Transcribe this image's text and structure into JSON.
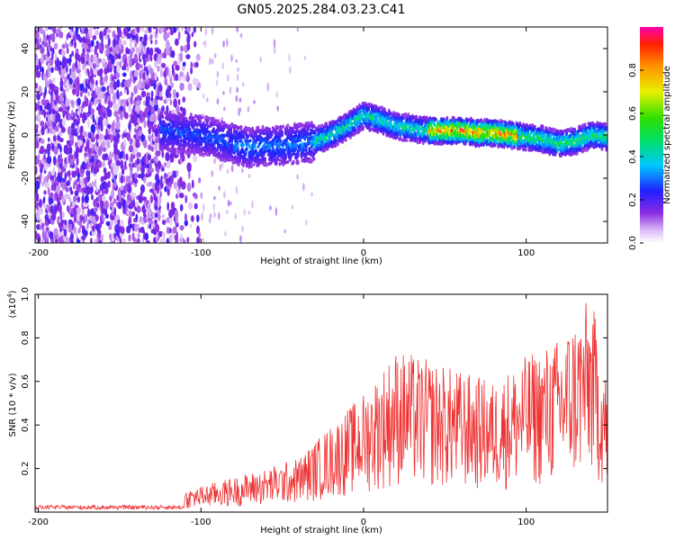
{
  "title": "GN05.2025.284.03.23.C41",
  "chart_data": [
    {
      "type": "heatmap",
      "title": "GN05.2025.284.03.23.C41",
      "xlabel": "Height of straight line (km)",
      "ylabel": "Frequency (Hz)",
      "xlim": [
        -202,
        150
      ],
      "ylim": [
        -50,
        50
      ],
      "x_ticks": [
        -200,
        -100,
        0,
        100
      ],
      "y_ticks": [
        -40,
        -20,
        0,
        20,
        40
      ],
      "colorbar": {
        "label": "Normalized spectral amplitude",
        "range": [
          0.0,
          1.0
        ],
        "ticks": [
          "0.0",
          "0.2",
          "0.4",
          "0.6",
          "0.8"
        ],
        "tick_values": [
          0.0,
          0.2,
          0.4,
          0.6,
          0.8
        ]
      },
      "ridge": {
        "description_x": [
          -125,
          -100,
          -80,
          -70,
          -60,
          -50,
          -40,
          -30,
          -20,
          -10,
          0,
          10,
          20,
          30,
          40,
          50,
          60,
          70,
          80,
          90,
          100,
          110,
          120,
          130,
          140,
          150
        ],
        "frequency_hz": [
          2,
          0,
          -4,
          -6,
          -5,
          -5,
          -4,
          -3,
          0,
          4,
          9,
          7,
          4,
          3,
          2,
          2,
          2,
          1,
          1,
          0,
          -1,
          -2,
          -4,
          -3,
          0,
          -1
        ]
      }
    },
    {
      "type": "line",
      "xlabel": "Height of straight line (km)",
      "ylabel": "SNR (10 * v/v)",
      "y_multiplier_label": "(x10",
      "y_multiplier_exp": "4",
      "xlim": [
        -202,
        150
      ],
      "ylim": [
        0,
        1.0
      ],
      "x_ticks": [
        -200,
        -100,
        0,
        100
      ],
      "y_ticks": [
        0.2,
        0.4,
        0.6,
        0.8,
        1.0
      ],
      "y_tick_labels": [
        "0.2",
        "0.4",
        "0.6",
        "0.8",
        "1.0"
      ],
      "series": [
        {
          "name": "SNR",
          "color": "#ee3333",
          "envelope_x": [
            -202,
            -150,
            -120,
            -110,
            -100,
            -80,
            -60,
            -40,
            -20,
            0,
            20,
            40,
            60,
            80,
            100,
            120,
            140,
            150
          ],
          "envelope_max": [
            0.03,
            0.03,
            0.05,
            0.1,
            0.12,
            0.16,
            0.2,
            0.25,
            0.4,
            0.55,
            0.75,
            0.7,
            0.65,
            0.6,
            0.72,
            0.8,
            1.0,
            0.6
          ]
        }
      ]
    }
  ]
}
